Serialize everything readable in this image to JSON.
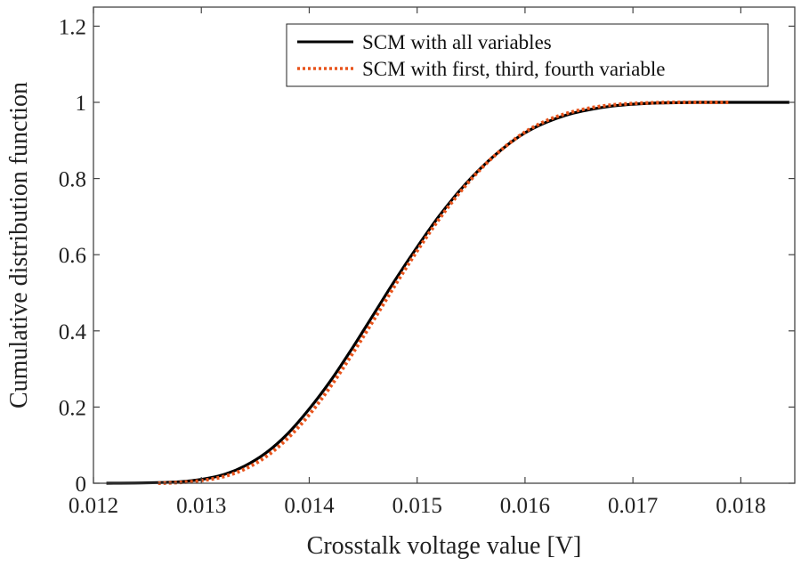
{
  "chart_data": {
    "type": "line",
    "title": "",
    "xlabel": "Crosstalk voltage value [V]",
    "ylabel": "Cumulative distribution function",
    "xlim": [
      0.012,
      0.0185
    ],
    "ylim": [
      0,
      1.25
    ],
    "xticks": [
      0.012,
      0.013,
      0.014,
      0.015,
      0.016,
      0.017,
      0.018
    ],
    "xtick_labels": [
      "0.012",
      "0.013",
      "0.014",
      "0.015",
      "0.016",
      "0.017",
      "0.018"
    ],
    "yticks": [
      0,
      0.2,
      0.4,
      0.6,
      0.8,
      1,
      1.2
    ],
    "ytick_labels": [
      "0",
      "0.2",
      "0.4",
      "0.6",
      "0.8",
      "1",
      "1.2"
    ],
    "grid": false,
    "legend_position": "top-right",
    "series": [
      {
        "name": "SCM with all variables",
        "color": "#000000",
        "style": "solid",
        "x": [
          0.01212,
          0.0125,
          0.0128,
          0.013,
          0.0132,
          0.0134,
          0.0136,
          0.0138,
          0.014,
          0.0142,
          0.0144,
          0.0146,
          0.0148,
          0.015,
          0.0152,
          0.0154,
          0.0156,
          0.0158,
          0.016,
          0.0162,
          0.0164,
          0.0166,
          0.0168,
          0.017,
          0.0172,
          0.0174,
          0.0176,
          0.0178,
          0.018,
          0.0182,
          0.01845
        ],
        "y": [
          0.0,
          0.001,
          0.004,
          0.01,
          0.022,
          0.045,
          0.08,
          0.13,
          0.195,
          0.27,
          0.355,
          0.445,
          0.535,
          0.62,
          0.7,
          0.77,
          0.83,
          0.88,
          0.92,
          0.948,
          0.968,
          0.981,
          0.99,
          0.995,
          0.998,
          0.999,
          1.0,
          1.0,
          1.0,
          1.0,
          1.0
        ]
      },
      {
        "name": "SCM with first, third, fourth variable",
        "color": "#E8541C",
        "style": "dotted",
        "x": [
          0.0126,
          0.0128,
          0.013,
          0.0132,
          0.0134,
          0.0136,
          0.0138,
          0.014,
          0.0142,
          0.0144,
          0.0146,
          0.0148,
          0.015,
          0.0152,
          0.0154,
          0.0156,
          0.0158,
          0.016,
          0.0162,
          0.0164,
          0.0166,
          0.0168,
          0.017,
          0.0172,
          0.0174,
          0.0176,
          0.0178,
          0.0179
        ],
        "y": [
          0.0,
          0.002,
          0.007,
          0.017,
          0.037,
          0.07,
          0.118,
          0.18,
          0.255,
          0.34,
          0.43,
          0.522,
          0.61,
          0.692,
          0.765,
          0.828,
          0.88,
          0.922,
          0.952,
          0.972,
          0.985,
          0.993,
          0.997,
          0.999,
          1.0,
          1.0,
          1.0,
          1.0
        ]
      }
    ]
  }
}
